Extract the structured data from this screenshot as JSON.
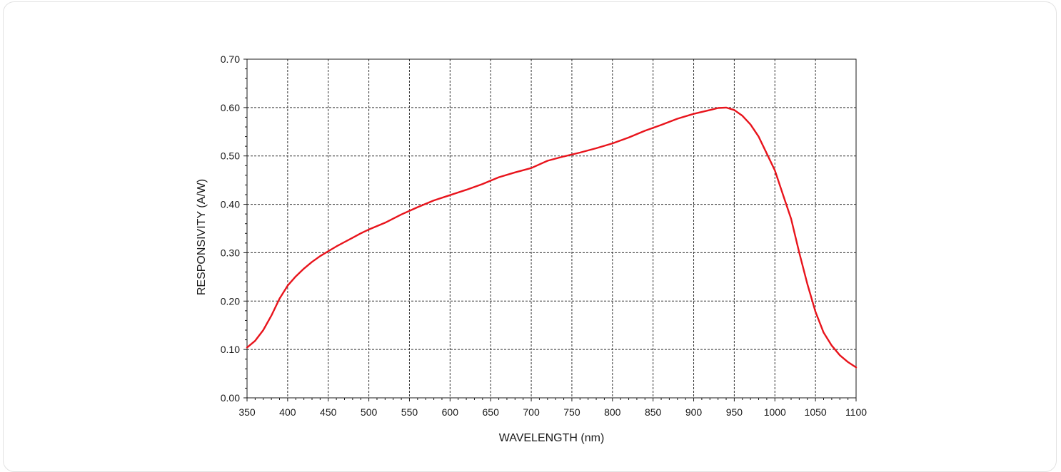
{
  "chart_data": {
    "type": "line",
    "xlabel": "WAVELENGTH (nm)",
    "ylabel": "RESPONSIVITY (A/W)",
    "xlim": [
      350,
      1100
    ],
    "ylim": [
      0.0,
      0.7
    ],
    "x_ticks": [
      "350",
      "400",
      "450",
      "500",
      "550",
      "600",
      "650",
      "700",
      "750",
      "800",
      "850",
      "900",
      "950",
      "1000",
      "1050",
      "1100"
    ],
    "y_ticks": [
      "0.00",
      "0.10",
      "0.20",
      "0.30",
      "0.40",
      "0.50",
      "0.60",
      "0.70"
    ],
    "grid": true,
    "line_color": "#e8141c",
    "series": [
      {
        "x": [
          350,
          360,
          370,
          380,
          390,
          400,
          410,
          420,
          430,
          440,
          450,
          460,
          470,
          480,
          490,
          500,
          520,
          540,
          560,
          580,
          600,
          620,
          640,
          660,
          680,
          700,
          720,
          740,
          760,
          780,
          800,
          820,
          840,
          860,
          880,
          900,
          920,
          930,
          940,
          950,
          960,
          970,
          980,
          990,
          1000,
          1010,
          1020,
          1030,
          1040,
          1050,
          1060,
          1070,
          1080,
          1090,
          1100
        ],
        "y": [
          0.104,
          0.118,
          0.14,
          0.17,
          0.205,
          0.232,
          0.251,
          0.267,
          0.281,
          0.293,
          0.303,
          0.313,
          0.322,
          0.331,
          0.34,
          0.348,
          0.362,
          0.379,
          0.394,
          0.408,
          0.419,
          0.43,
          0.442,
          0.456,
          0.466,
          0.475,
          0.49,
          0.499,
          0.507,
          0.516,
          0.526,
          0.538,
          0.552,
          0.564,
          0.577,
          0.587,
          0.595,
          0.599,
          0.6,
          0.595,
          0.583,
          0.565,
          0.54,
          0.505,
          0.47,
          0.42,
          0.37,
          0.3,
          0.235,
          0.178,
          0.135,
          0.108,
          0.088,
          0.074,
          0.063
        ]
      }
    ]
  }
}
